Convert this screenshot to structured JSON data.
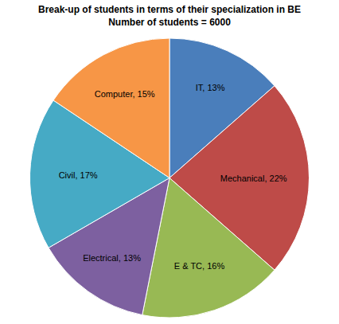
{
  "chart_data": {
    "type": "pie",
    "title": "Break-up of students in terms of their specialization in BE",
    "subtitle": "Number of students = 6000",
    "categories": [
      "IT",
      "Mechanical",
      "E & TC",
      "Electrical",
      "Civil",
      "Computer"
    ],
    "values": [
      13,
      22,
      16,
      13,
      17,
      15
    ],
    "value_labels": [
      "IT, 13%",
      "Mechanical, 22%",
      "E & TC, 16%",
      "Electrical, 13%",
      "Civil, 17%",
      "Computer, 15%"
    ],
    "colors": [
      "#4a7ebb",
      "#be4b48",
      "#98b954",
      "#7d60a0",
      "#46aac5",
      "#f79646"
    ],
    "data_labels": true
  }
}
